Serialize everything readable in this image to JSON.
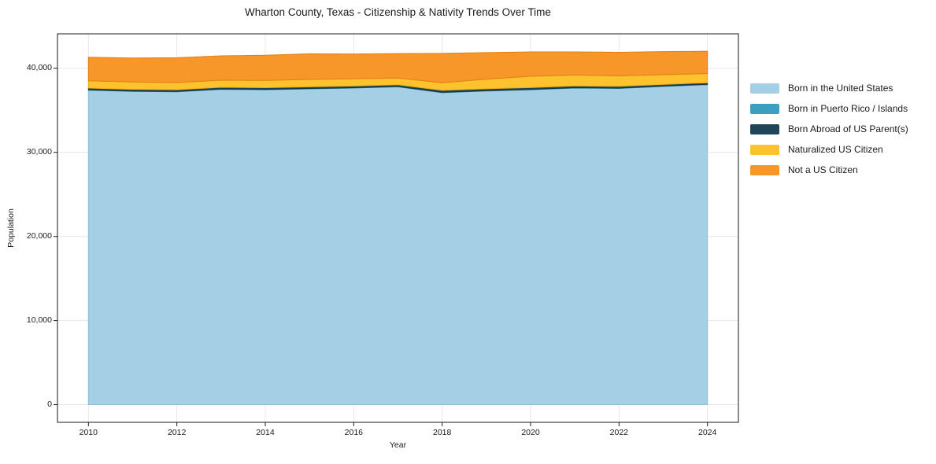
{
  "chart_data": {
    "type": "area",
    "stacked": true,
    "title": "Wharton County, Texas - Citizenship & Nativity Trends Over Time",
    "xlabel": "Year",
    "ylabel": "Population",
    "x": [
      2010,
      2011,
      2012,
      2013,
      2014,
      2015,
      2016,
      2017,
      2018,
      2019,
      2020,
      2021,
      2022,
      2023,
      2024
    ],
    "series": [
      {
        "name": "Born in the United States",
        "color": "#a5cfe4",
        "edge": "#8fbeda",
        "values": [
          37400,
          37250,
          37200,
          37500,
          37450,
          37550,
          37650,
          37800,
          37100,
          37300,
          37450,
          37650,
          37600,
          37850,
          38050
        ]
      },
      {
        "name": "Born in Puerto Rico / Islands",
        "color": "#3d9fc0",
        "edge": "#2d8aa8",
        "values": [
          45,
          45,
          45,
          45,
          45,
          45,
          45,
          45,
          45,
          45,
          45,
          45,
          45,
          45,
          45
        ]
      },
      {
        "name": "Born Abroad of US Parent(s)",
        "color": "#1f4557",
        "edge": "#16323f",
        "values": [
          200,
          200,
          200,
          200,
          200,
          200,
          200,
          200,
          230,
          220,
          210,
          205,
          210,
          190,
          185
        ]
      },
      {
        "name": "Naturalized US Citizen",
        "color": "#fdc22d",
        "edge": "#e9ab15",
        "values": [
          870,
          880,
          860,
          840,
          860,
          880,
          860,
          800,
          900,
          1150,
          1350,
          1300,
          1250,
          1150,
          1100
        ]
      },
      {
        "name": "Not a US Citizen",
        "color": "#f79729",
        "edge": "#e07f18",
        "values": [
          2800,
          2850,
          2950,
          2900,
          3000,
          3050,
          2950,
          2900,
          3500,
          3150,
          2900,
          2750,
          2800,
          2750,
          2650
        ]
      }
    ],
    "xlim": [
      2009.3,
      2024.7
    ],
    "ylim": [
      -2100,
      44100
    ],
    "xtick_values": [
      2010,
      2012,
      2014,
      2016,
      2018,
      2020,
      2022,
      2024
    ],
    "xtick_labels": [
      "2010",
      "2012",
      "2014",
      "2016",
      "2018",
      "2020",
      "2022",
      "2024"
    ],
    "ytick_values": [
      0,
      10000,
      20000,
      30000,
      40000
    ],
    "ytick_labels": [
      "0",
      "10,000",
      "20,000",
      "30,000",
      "40,000"
    ],
    "grid": true,
    "legend_position": "right",
    "colors": {
      "background": "#ffffff",
      "grid": "#e7e7e7",
      "frame": "#1a1a1a",
      "text": "#1a1a1a"
    }
  }
}
